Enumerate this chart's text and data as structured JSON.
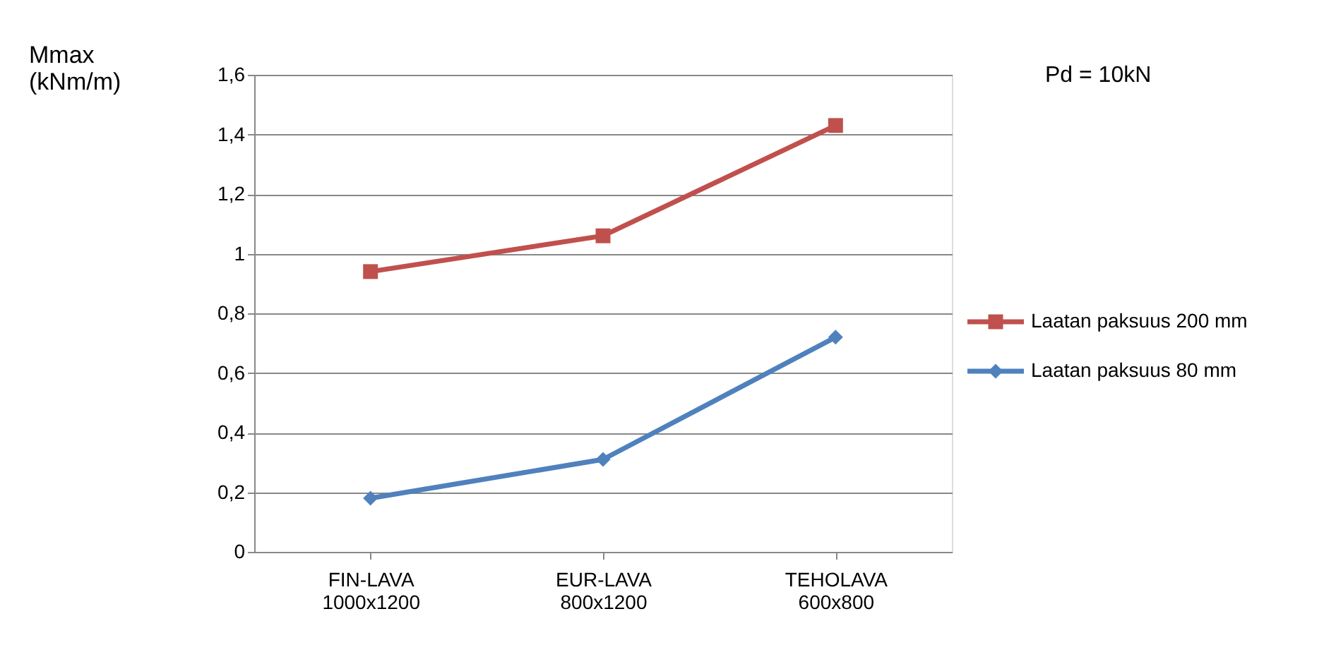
{
  "chart_data": {
    "type": "line",
    "ylabel": "Mmax\n(kNm/m)",
    "annotations": [
      "Pd = 10kN"
    ],
    "categories": [
      "FIN-LAVA\n1000x1200",
      "EUR-LAVA\n800x1200",
      "TEHOLAVA\n600x800"
    ],
    "series": [
      {
        "name": "Laatan paksuus 200 mm",
        "color": "#c0504d",
        "marker": "square",
        "values": [
          0.94,
          1.06,
          1.43
        ]
      },
      {
        "name": "Laatan paksuus 80 mm",
        "color": "#4f81bd",
        "marker": "diamond",
        "values": [
          0.18,
          0.31,
          0.72
        ]
      }
    ],
    "ylim": [
      0,
      1.6
    ],
    "yticks": [
      0,
      {
        "value": 0.2,
        "label": "0,2"
      },
      {
        "value": 0.4,
        "label": "0,4"
      },
      {
        "value": 0.6,
        "label": "0,6"
      },
      {
        "value": 0.8,
        "label": "0,8"
      },
      1,
      {
        "value": 1.2,
        "label": "1,2"
      },
      {
        "value": 1.4,
        "label": "1,4"
      },
      {
        "value": 1.6,
        "label": "1,6"
      }
    ],
    "grid": "y",
    "legend": "right",
    "line_style": "solid"
  }
}
